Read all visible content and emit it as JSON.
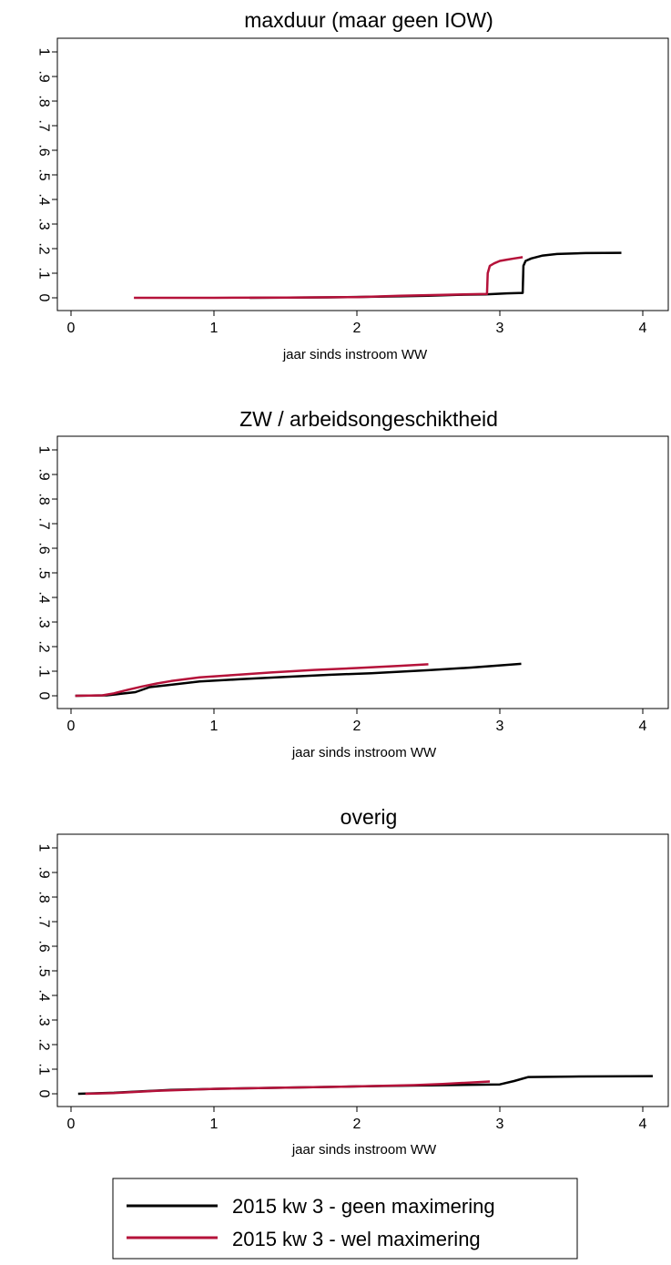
{
  "chart_data": [
    {
      "type": "line",
      "title": "maxduur (maar geen IOW)",
      "xlabel": "jaar sinds instroom WW",
      "ylabel": "",
      "xlim": [
        0,
        4.2
      ],
      "ylim": [
        0,
        1
      ],
      "xticks": [
        "0",
        "1",
        "2",
        "3",
        "4"
      ],
      "yticks": [
        "0",
        ".1",
        ".2",
        ".3",
        ".4",
        ".5",
        ".6",
        ".7",
        ".8",
        ".9",
        "1"
      ],
      "series": [
        {
          "name": "2015 kw 3 - geen maximering",
          "x": [
            1.25,
            1.8,
            2.2,
            2.5,
            2.7,
            2.9,
            3.05,
            3.16,
            3.165,
            3.18,
            3.22,
            3.3,
            3.4,
            3.6,
            3.85
          ],
          "y": [
            0.0,
            0.002,
            0.005,
            0.008,
            0.012,
            0.014,
            0.018,
            0.02,
            0.13,
            0.15,
            0.16,
            0.172,
            0.178,
            0.182,
            0.183
          ]
        },
        {
          "name": "2015 kw 3 - wel maximering",
          "x": [
            0.44,
            1.0,
            1.5,
            2.0,
            2.3,
            2.6,
            2.91,
            2.915,
            2.93,
            2.96,
            3.0,
            3.05,
            3.1,
            3.16
          ],
          "y": [
            0.0,
            0.0,
            0.001,
            0.003,
            0.008,
            0.012,
            0.016,
            0.1,
            0.13,
            0.14,
            0.15,
            0.155,
            0.16,
            0.165
          ]
        }
      ]
    },
    {
      "type": "line",
      "title": "ZW / arbeidsongeschiktheid",
      "xlabel": "jaar sinds instroom WW",
      "ylabel": "",
      "xlim": [
        0,
        4.2
      ],
      "ylim": [
        0,
        1
      ],
      "xticks": [
        "0",
        "1",
        "2",
        "3",
        "4"
      ],
      "yticks": [
        "0",
        ".1",
        ".2",
        ".3",
        ".4",
        ".5",
        ".6",
        ".7",
        ".8",
        ".9",
        "1"
      ],
      "series": [
        {
          "name": "2015 kw 3 - geen maximering",
          "x": [
            0.03,
            0.25,
            0.35,
            0.45,
            0.55,
            0.7,
            0.9,
            1.2,
            1.5,
            1.8,
            2.1,
            2.5,
            2.8,
            3.15
          ],
          "y": [
            0.0,
            0.002,
            0.008,
            0.015,
            0.035,
            0.045,
            0.058,
            0.068,
            0.077,
            0.085,
            0.092,
            0.104,
            0.115,
            0.13
          ]
        },
        {
          "name": "2015 kw 3 - wel maximering",
          "x": [
            0.03,
            0.22,
            0.3,
            0.4,
            0.5,
            0.6,
            0.7,
            0.9,
            1.1,
            1.4,
            1.7,
            2.0,
            2.3,
            2.5
          ],
          "y": [
            0.0,
            0.002,
            0.01,
            0.025,
            0.038,
            0.05,
            0.06,
            0.075,
            0.083,
            0.095,
            0.105,
            0.113,
            0.122,
            0.128
          ]
        }
      ]
    },
    {
      "type": "line",
      "title": "overig",
      "xlabel": "jaar sinds instroom WW",
      "ylabel": "",
      "xlim": [
        0,
        4.2
      ],
      "ylim": [
        0,
        1
      ],
      "xticks": [
        "0",
        "1",
        "2",
        "3",
        "4"
      ],
      "yticks": [
        "0",
        ".1",
        ".2",
        ".3",
        ".4",
        ".5",
        ".6",
        ".7",
        ".8",
        ".9",
        "1"
      ],
      "series": [
        {
          "name": "2015 kw 3 - geen maximering",
          "x": [
            0.05,
            0.3,
            0.5,
            0.7,
            1.0,
            1.5,
            2.0,
            2.5,
            3.0,
            3.1,
            3.2,
            3.5,
            4.07
          ],
          "y": [
            0.0,
            0.004,
            0.01,
            0.016,
            0.02,
            0.025,
            0.03,
            0.034,
            0.038,
            0.052,
            0.068,
            0.07,
            0.072
          ]
        },
        {
          "name": "2015 kw 3 - wel maximering",
          "x": [
            0.1,
            0.3,
            0.6,
            1.0,
            1.5,
            2.0,
            2.4,
            2.6,
            2.8,
            2.93
          ],
          "y": [
            0.0,
            0.003,
            0.012,
            0.02,
            0.025,
            0.03,
            0.035,
            0.04,
            0.046,
            0.05
          ]
        }
      ]
    }
  ],
  "legend": {
    "placement": "bottom-center",
    "items": [
      {
        "label": "2015 kw 3 - geen maximering",
        "color": "#000000"
      },
      {
        "label": "2015 kw 3 - wel maximering",
        "color": "#b5123a"
      }
    ]
  },
  "colors": {
    "geen_maximering": "#000000",
    "wel_maximering": "#b5123a"
  }
}
